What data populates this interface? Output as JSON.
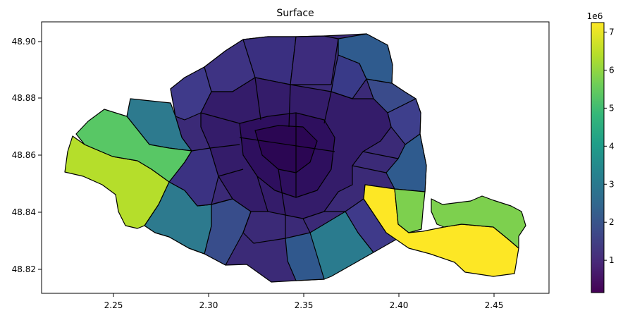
{
  "title": "Surface",
  "colorbar": {
    "multiplier_label": "1e6",
    "ticks": [
      1,
      2,
      3,
      4,
      5,
      6,
      7
    ],
    "range": [
      0.15,
      7.25
    ],
    "colormap": [
      "#440154",
      "#482878",
      "#3e4989",
      "#31688e",
      "#26828e",
      "#1f9e89",
      "#35b779",
      "#6ece58",
      "#b5de2b",
      "#fde725"
    ]
  },
  "axes": {
    "x_ticks": [
      "2.25",
      "2.30",
      "2.35",
      "2.40",
      "2.45"
    ],
    "y_ticks": [
      "48.90",
      "48.88",
      "48.86",
      "48.84",
      "48.82"
    ]
  },
  "colors": {
    "bois_de_boulogne": "#b5de2b",
    "bois_de_vincennes": "#fde725",
    "outer_green": "#58c765",
    "teal": "#2d7a8e",
    "blue": "#2f5b8e",
    "dark": "#3b2a77"
  }
}
